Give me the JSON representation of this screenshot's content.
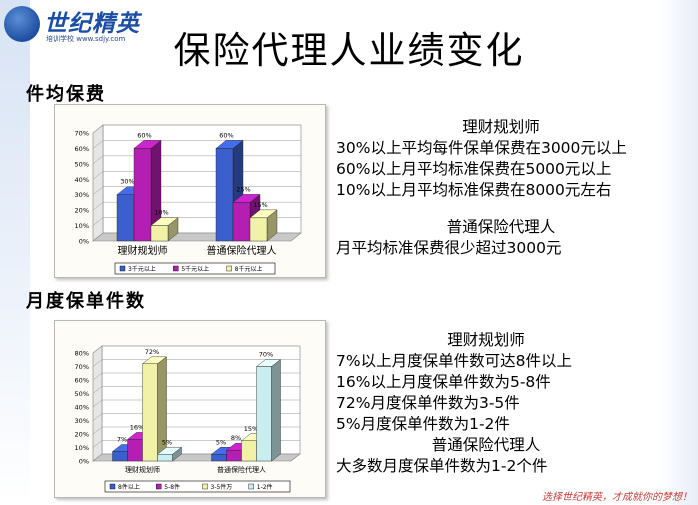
{
  "header": {
    "logo_title": "世纪精英",
    "logo_url": "培训学校 www.sdjy.com",
    "title": "保险代理人业绩变化"
  },
  "sections": {
    "premium_heading": "件均保费",
    "policy_heading": "月度保单件数"
  },
  "premium_text": {
    "group1_title": "理财规划师",
    "group1_lines": [
      "30%以上平均每件保单保费在3000元以上",
      "60%以上月平均标准保费在5000元以上",
      "10%以上月平均标准保费在8000元左右"
    ],
    "group2_title": "普通保险代理人",
    "group2_lines": [
      "月平均标准保费很少超过3000元"
    ]
  },
  "policy_text": {
    "group1_title": "理财规划师",
    "group1_lines": [
      "7%以上月度保单件数可达8件以上",
      "16%以上月度保单件数为5-8件",
      "72%月度保单件数为3-5件",
      "5%月度保单件数为1-2件"
    ],
    "group2_title": "普通保险代理人",
    "group2_lines": [
      "大多数月度保单件数为1-2个件"
    ]
  },
  "footer": {
    "slogan": "选择世纪精英，才成就你的梦想！"
  },
  "chart_data": [
    {
      "type": "bar",
      "style": "3d-clustered-column",
      "categories": [
        "理财规划师",
        "普通保险代理人"
      ],
      "y_ticks": [
        "0%",
        "10%",
        "20%",
        "30%",
        "40%",
        "50%",
        "60%",
        "70%"
      ],
      "ylim": [
        0,
        70
      ],
      "series": [
        {
          "name": "3千元以上",
          "values": [
            30,
            60
          ],
          "labels": [
            "30%",
            "60%"
          ],
          "color": "#3b5fcc"
        },
        {
          "name": "5千元以上",
          "values": [
            60,
            25
          ],
          "labels": [
            "60%",
            "25%"
          ],
          "color": "#b31fb3"
        },
        {
          "name": "8千元以上",
          "values": [
            10,
            15
          ],
          "labels": [
            "10%",
            "15%"
          ],
          "color": "#f2f2a6"
        }
      ],
      "legend_position": "bottom"
    },
    {
      "type": "bar",
      "style": "3d-clustered-column",
      "categories": [
        "理财规划师",
        "普通保险代理人"
      ],
      "y_ticks": [
        "0%",
        "10%",
        "20%",
        "30%",
        "40%",
        "50%",
        "60%",
        "70%",
        "80%"
      ],
      "ylim": [
        0,
        80
      ],
      "series": [
        {
          "name": "8件以上",
          "values": [
            7,
            5
          ],
          "labels": [
            "7%",
            "5%"
          ],
          "color": "#3b5fcc"
        },
        {
          "name": "5-8件",
          "values": [
            16,
            8
          ],
          "labels": [
            "16%",
            "8%"
          ],
          "color": "#b31fb3"
        },
        {
          "name": "3-5件万",
          "values": [
            72,
            15
          ],
          "labels": [
            "72%",
            "15%"
          ],
          "color": "#f2f2a6"
        },
        {
          "name": "1-2件",
          "values": [
            5,
            70
          ],
          "labels": [
            "5%",
            "70%"
          ],
          "color": "#c9eef2"
        }
      ],
      "legend_position": "bottom"
    }
  ]
}
